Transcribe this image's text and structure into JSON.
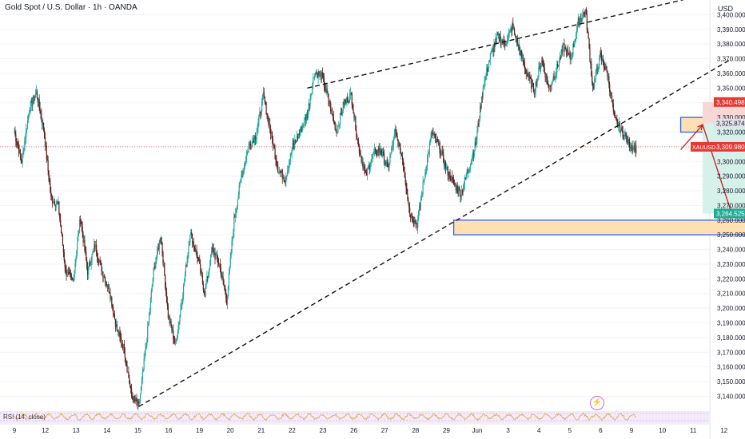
{
  "header": {
    "title": "Gold Spot / U.S. Dollar · 1h · OANDA",
    "currency": "USD"
  },
  "rsi_label": "RSI (14, close)",
  "colors": {
    "up": "#26a69a",
    "down": "#ef5350",
    "dark": "#5d1f1f",
    "box_blue": "#2962ff",
    "box_fill": "#ffe0b2",
    "stop": "#f8d7d7",
    "target": "#d6f0ea",
    "price_line": "#ef5350"
  },
  "chart_data": {
    "type": "candlestick",
    "symbol": "XAUUSD",
    "ylim": [
      3131,
      3410
    ],
    "y_ticks": [
      3140,
      3150,
      3160,
      3170,
      3180,
      3190,
      3200,
      3210,
      3220,
      3230,
      3240,
      3250,
      3260,
      3270,
      3280,
      3290,
      3300,
      3310,
      3320,
      3330,
      3340,
      3350,
      3360,
      3370,
      3380,
      3390,
      3400
    ],
    "x_ticks": [
      "9",
      "12",
      "13",
      "14",
      "15",
      "16",
      "19",
      "20",
      "21",
      "22",
      "23",
      "26",
      "27",
      "28",
      "29",
      "Jun",
      "3",
      "4",
      "5",
      "6",
      "9",
      "10",
      "11",
      "12"
    ],
    "anchors": [
      [
        0,
        3320
      ],
      [
        1,
        3300
      ],
      [
        2,
        3335
      ],
      [
        3,
        3347
      ],
      [
        4,
        3322
      ],
      [
        5,
        3275
      ],
      [
        6,
        3270
      ],
      [
        7,
        3225
      ],
      [
        8,
        3218
      ],
      [
        9,
        3262
      ],
      [
        10,
        3225
      ],
      [
        11,
        3243
      ],
      [
        12,
        3225
      ],
      [
        13,
        3212
      ],
      [
        14,
        3185
      ],
      [
        15,
        3172
      ],
      [
        16,
        3140
      ],
      [
        17,
        3133
      ],
      [
        18,
        3175
      ],
      [
        19,
        3225
      ],
      [
        20,
        3250
      ],
      [
        21,
        3195
      ],
      [
        22,
        3175
      ],
      [
        23,
        3210
      ],
      [
        24,
        3252
      ],
      [
        25,
        3235
      ],
      [
        26,
        3210
      ],
      [
        27,
        3240
      ],
      [
        28,
        3230
      ],
      [
        29,
        3205
      ],
      [
        30,
        3260
      ],
      [
        31,
        3290
      ],
      [
        32,
        3310
      ],
      [
        33,
        3318
      ],
      [
        34,
        3345
      ],
      [
        35,
        3320
      ],
      [
        36,
        3295
      ],
      [
        37,
        3288
      ],
      [
        38,
        3310
      ],
      [
        39,
        3320
      ],
      [
        40,
        3332
      ],
      [
        41,
        3361
      ],
      [
        42,
        3358
      ],
      [
        43,
        3340
      ],
      [
        44,
        3320
      ],
      [
        45,
        3340
      ],
      [
        46,
        3345
      ],
      [
        47,
        3310
      ],
      [
        48,
        3290
      ],
      [
        49,
        3305
      ],
      [
        50,
        3308
      ],
      [
        51,
        3295
      ],
      [
        52,
        3320
      ],
      [
        53,
        3302
      ],
      [
        54,
        3265
      ],
      [
        55,
        3257
      ],
      [
        56,
        3290
      ],
      [
        57,
        3320
      ],
      [
        58,
        3310
      ],
      [
        59,
        3295
      ],
      [
        60,
        3285
      ],
      [
        61,
        3278
      ],
      [
        62,
        3295
      ],
      [
        63,
        3312
      ],
      [
        64,
        3350
      ],
      [
        65,
        3372
      ],
      [
        66,
        3385
      ],
      [
        67,
        3380
      ],
      [
        68,
        3392
      ],
      [
        69,
        3375
      ],
      [
        70,
        3360
      ],
      [
        71,
        3348
      ],
      [
        72,
        3370
      ],
      [
        73,
        3350
      ],
      [
        74,
        3362
      ],
      [
        75,
        3378
      ],
      [
        76,
        3370
      ],
      [
        77,
        3395
      ],
      [
        78,
        3403
      ],
      [
        79,
        3350
      ],
      [
        80,
        3372
      ],
      [
        81,
        3360
      ],
      [
        82,
        3328
      ],
      [
        83,
        3320
      ],
      [
        84,
        3312
      ],
      [
        85,
        3308
      ]
    ],
    "price_labels": [
      {
        "value": 3340.498,
        "text": "3,340.498",
        "style": "red"
      },
      {
        "value": 3325.874,
        "text": "3,325.874",
        "style": "grey"
      },
      {
        "value": 3309.98,
        "text": "3,309.980",
        "style": "red",
        "prefix": "XAUUSD"
      },
      {
        "value": 3264.525,
        "text": "3,264.525",
        "style": "green"
      }
    ],
    "trendlines": [
      {
        "name": "upper-wedge-line",
        "points": [
          [
            40,
            3350
          ],
          [
            98,
            3418
          ]
        ]
      },
      {
        "name": "lower-wedge-line",
        "points": [
          [
            17,
            3133
          ],
          [
            98,
            3370
          ]
        ]
      }
    ],
    "zones": [
      {
        "name": "supply-zone",
        "x": [
          91,
          96
        ],
        "y": [
          3320,
          3330
        ]
      },
      {
        "name": "demand-zone",
        "x": [
          60,
          106
        ],
        "y": [
          3250,
          3260
        ]
      }
    ],
    "position": {
      "start": 94,
      "end": 103,
      "entry": 3325.874,
      "stop": 3340.498,
      "target": 3264.525
    },
    "projection": [
      [
        91,
        3308
      ],
      [
        94,
        3325
      ],
      [
        98,
        3264
      ]
    ]
  }
}
